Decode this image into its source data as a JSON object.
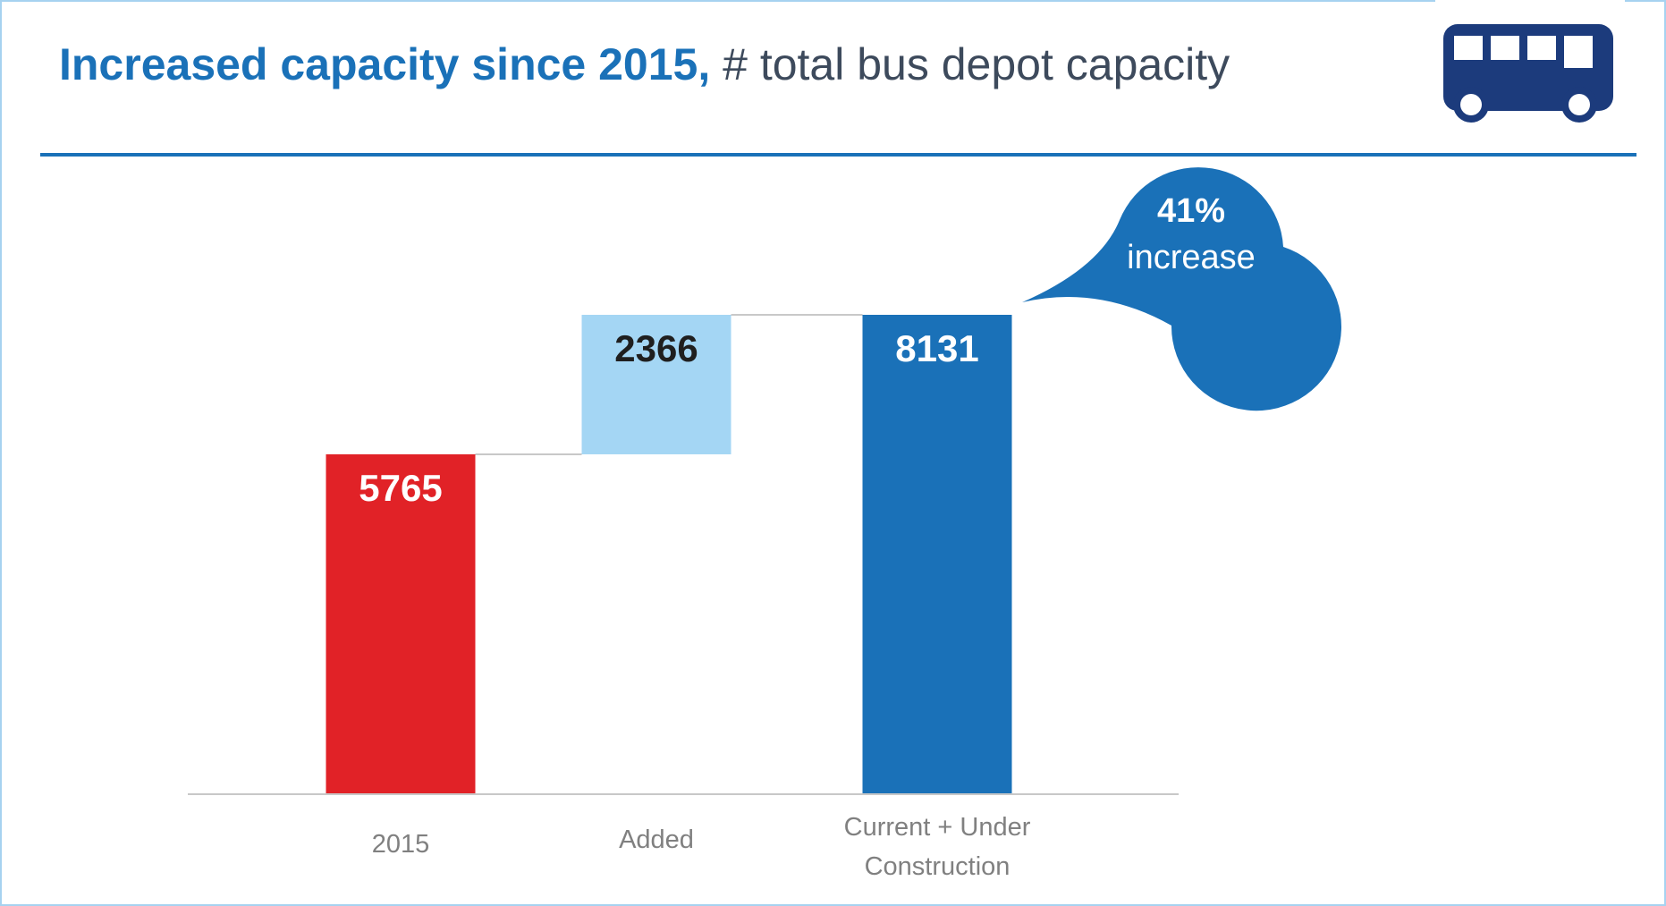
{
  "title": {
    "bold": "Increased capacity since 2015,",
    "rest": " # total bus depot capacity"
  },
  "icons": {
    "bus": "bus-icon"
  },
  "colors": {
    "accent": "#1a71b8",
    "base": "#e12227",
    "added": "#a4d6f4",
    "total": "#1a71b8",
    "title_text": "#3d4a5c",
    "frame": "#a6d2f0"
  },
  "callout": {
    "line1": "41%",
    "line2": "increase"
  },
  "chart_data": {
    "type": "bar",
    "subtype": "waterfall",
    "categories": [
      "2015",
      "Added",
      "Current + Under Construction"
    ],
    "category_lines": [
      [
        "2015"
      ],
      [
        "Added"
      ],
      [
        "Current + Under",
        "Construction"
      ]
    ],
    "values": [
      5765,
      2366,
      8131
    ],
    "data_labels": [
      "5765",
      "2366",
      "8131"
    ],
    "title": "Increased capacity since 2015, # total bus depot capacity",
    "xlabel": "",
    "ylabel": "",
    "ylim": [
      0,
      8131
    ],
    "grid": false,
    "legend": "none",
    "annotation": "41% increase"
  }
}
